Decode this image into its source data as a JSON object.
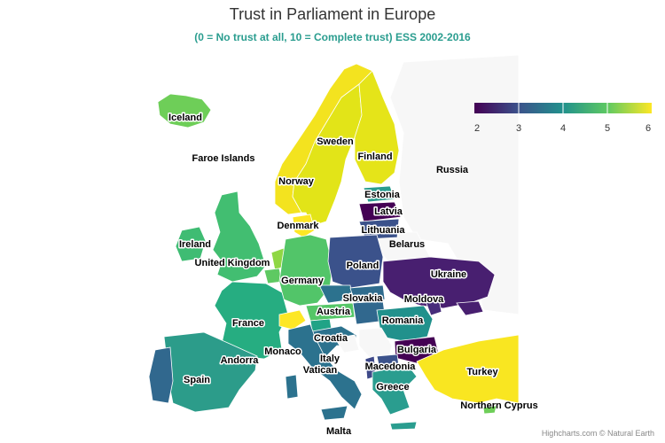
{
  "header": {
    "title": "Trust in Parliament in Europe",
    "subtitle": "(0 = No trust at all, 10 = Complete trust) ESS 2002-2016"
  },
  "legend": {
    "ticks": [
      "2",
      "3",
      "4",
      "5",
      "6"
    ],
    "colors": [
      "#440154",
      "#3b528b",
      "#21918c",
      "#5ec962",
      "#fde725"
    ]
  },
  "credits": "Highcharts.com © Natural Earth",
  "colors": {
    "no_data": "#f7f7f7",
    "border": "#ffffff"
  },
  "labels": {
    "iceland": "Iceland",
    "faroe": "Faroe Islands",
    "sweden": "Sweden",
    "finland": "Finland",
    "russia": "Russia",
    "norway": "Norway",
    "estonia": "Estonia",
    "latvia": "Latvia",
    "denmark": "Denmark",
    "lithuania": "Lithuania",
    "ireland": "Ireland",
    "belarus": "Belarus",
    "uk": "United Kingdom",
    "poland": "Poland",
    "ukraine": "Ukraine",
    "germany": "Germany",
    "slovakia": "Slovakia",
    "moldova": "Moldova",
    "austria": "Austria",
    "france": "France",
    "romania": "Romania",
    "croatia": "Croatia",
    "bulgaria": "Bulgaria",
    "andorra": "Andorra",
    "monaco": "Monaco",
    "italy": "Italy",
    "vatican": "Vatican",
    "macedonia": "Macedonia",
    "turkey": "Turkey",
    "spain": "Spain",
    "greece": "Greece",
    "cyprus": "Northern Cyprus",
    "malta": "Malta"
  }
}
